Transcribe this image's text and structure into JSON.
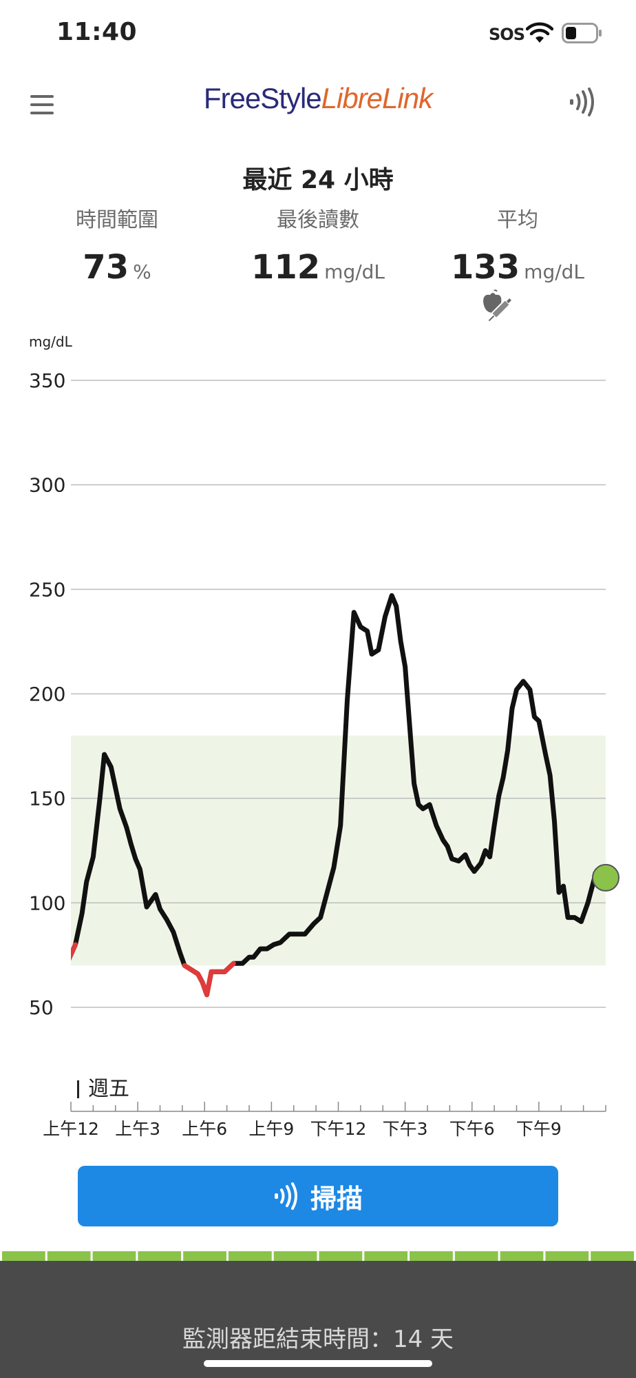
{
  "status_bar": {
    "time": "11:40",
    "sos": "SOS",
    "battery_level": 0.35
  },
  "header": {
    "brand_part1": "FreeStyle",
    "brand_part2": "LibreLink",
    "menu_icon": "hamburger-menu-icon",
    "scan_icon": "nfc-scan-icon"
  },
  "summary": {
    "title": "最近 24 小時",
    "stats": [
      {
        "label": "時間範圍",
        "value": "73",
        "unit": "%"
      },
      {
        "label": "最後讀數",
        "value": "112",
        "unit": "mg/dL"
      },
      {
        "label": "平均",
        "value": "133",
        "unit": "mg/dL"
      }
    ],
    "average_icon": "food-insulin-icon"
  },
  "chart_data": {
    "type": "line",
    "ylabel": "mg/dL",
    "ylim": [
      50,
      350
    ],
    "yticks": [
      "350",
      "300",
      "250",
      "200",
      "150",
      "100",
      "50"
    ],
    "ytick_values": [
      350,
      300,
      250,
      200,
      150,
      100,
      50
    ],
    "target_range": [
      70,
      180
    ],
    "x_range_hours": [
      0,
      24
    ],
    "xticks": [
      {
        "label": "上午12",
        "hour": 0
      },
      {
        "label": "上午3",
        "hour": 3
      },
      {
        "label": "上午6",
        "hour": 6
      },
      {
        "label": "上午9",
        "hour": 9
      },
      {
        "label": "下午12",
        "hour": 12
      },
      {
        "label": "下午3",
        "hour": 3
      },
      {
        "label": "下午6",
        "hour": 6
      },
      {
        "label": "下午9",
        "hour": 9
      }
    ],
    "xtick_hours": [
      0,
      3,
      6,
      9,
      12,
      15,
      18,
      21
    ],
    "day_marker": {
      "label": "週五",
      "hour": 0
    },
    "low_threshold": 70,
    "colors": {
      "line": "#111111",
      "low": "#e03a3a",
      "target_band": "#eef5e6",
      "grid": "#bdbdbd",
      "current": "#8bc34a"
    },
    "series": [
      {
        "x": [
          -0.3,
          0.2,
          0.5,
          0.7,
          1.0,
          1.3,
          1.5,
          1.8,
          2.2,
          2.5,
          2.7,
          2.9,
          3.1,
          3.4,
          3.8,
          4.0,
          4.3,
          4.6,
          4.9,
          5.1,
          5.4,
          5.7,
          5.9,
          6.1,
          6.3,
          6.6,
          6.9,
          7.3,
          7.7,
          8.0,
          8.2,
          8.5,
          8.8,
          9.1,
          9.4,
          9.8,
          10.0,
          10.2,
          10.5,
          10.9,
          11.2,
          11.5,
          11.8,
          12.1,
          12.4,
          12.7,
          13.0,
          13.3,
          13.5,
          13.8,
          14.1,
          14.4,
          14.6,
          14.8,
          15.0,
          15.2,
          15.4,
          15.6,
          15.8,
          16.1,
          16.4,
          16.7,
          16.9,
          17.1,
          17.4,
          17.7,
          17.9,
          18.1,
          18.4,
          18.6,
          18.8,
          19.0,
          19.2,
          19.4,
          19.6,
          19.8,
          20.0,
          20.3,
          20.6,
          20.8,
          21.0,
          21.3,
          21.5,
          21.7,
          21.9,
          22.1,
          22.3,
          22.6,
          22.9,
          23.2,
          23.5
        ],
        "y": [
          68,
          80,
          95,
          110,
          122,
          150,
          171,
          165,
          145,
          136,
          128,
          121,
          116,
          98,
          104,
          97,
          92,
          86,
          76,
          70,
          68,
          66,
          62,
          56,
          67,
          67,
          67,
          71,
          71,
          74,
          74,
          78,
          78,
          80,
          81,
          85,
          85,
          85,
          85,
          90,
          93,
          105,
          117,
          137,
          197,
          239,
          232,
          230,
          219,
          221,
          237,
          247,
          242,
          225,
          213,
          185,
          157,
          147,
          145,
          147,
          137,
          130,
          127,
          121,
          120,
          123,
          118,
          115,
          119,
          125,
          122,
          137,
          151,
          160,
          173,
          193,
          202,
          206,
          202,
          189,
          187,
          171,
          161,
          139,
          105,
          108,
          93,
          93,
          91,
          100,
          112
        ]
      }
    ],
    "current_point": {
      "x": 24.0,
      "y": 112
    }
  },
  "scan_button": {
    "label": "掃描",
    "icon": "nfc-scan-icon"
  },
  "sensor": {
    "remaining_text": "監測器距結束時間：14 天",
    "segments": 14,
    "segments_filled": 14
  }
}
